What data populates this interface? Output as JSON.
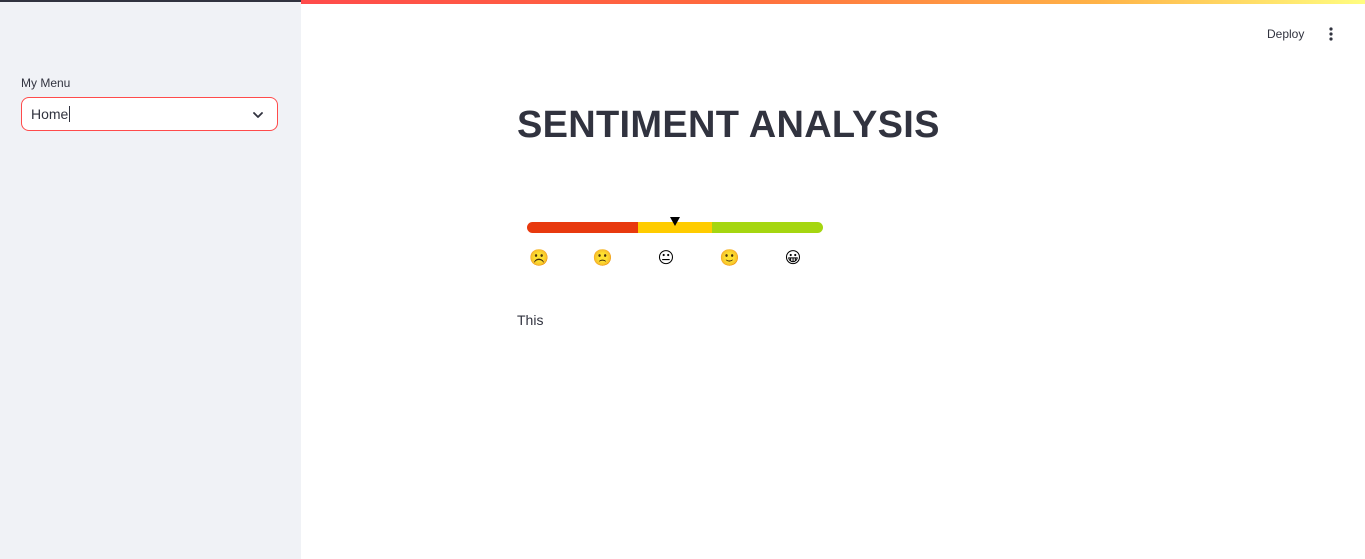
{
  "sidebar": {
    "menu_label": "My Menu",
    "select": {
      "value": "Home",
      "border_color": "#ff4b4b"
    }
  },
  "toolbar": {
    "deploy_label": "Deploy",
    "menu_icon": "vertical-dots-icon"
  },
  "main": {
    "title": "SENTIMENT ANALYSIS",
    "text": "This"
  },
  "sentiment_gauge": {
    "segments": [
      {
        "color": "#e8390e",
        "fraction": 0.375
      },
      {
        "color": "#ffcc00",
        "fraction": 0.25
      },
      {
        "color": "#a5d610",
        "fraction": 0.375
      }
    ],
    "marker_position": 0.5,
    "emojis": [
      "☹️",
      "🙁",
      "😐",
      "🙂",
      "😀"
    ]
  }
}
